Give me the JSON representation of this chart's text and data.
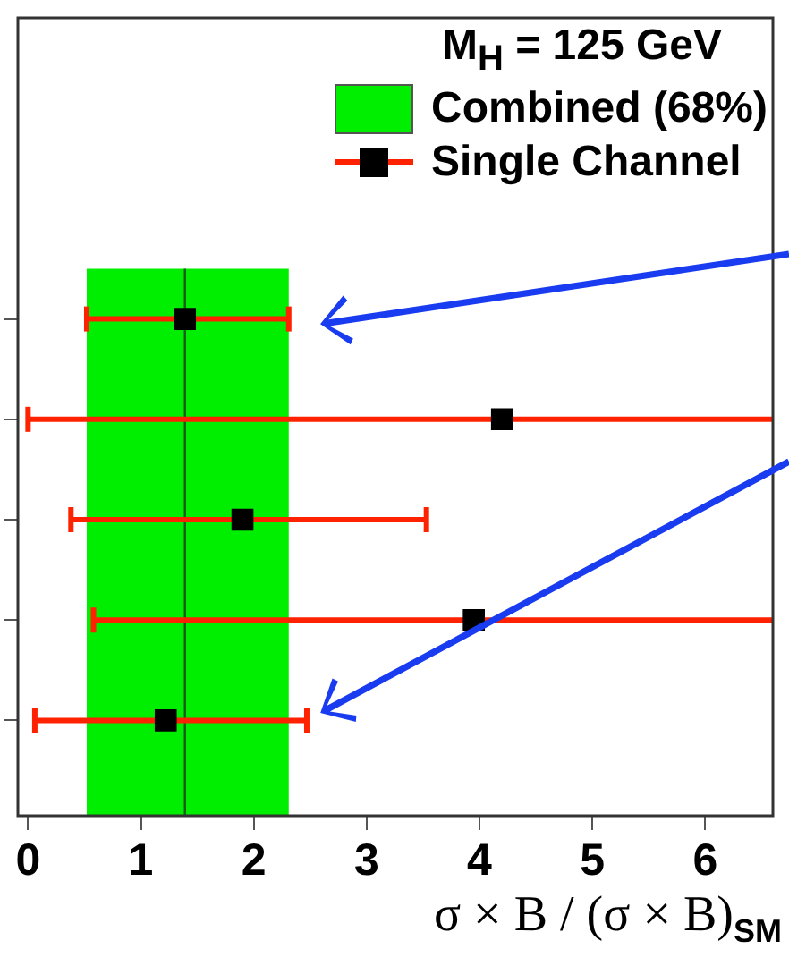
{
  "chart_data": {
    "type": "scatter",
    "orientation": "horizontal",
    "categories": [
      null,
      null,
      null,
      null,
      null
    ],
    "series": [
      {
        "name": "Single Channel",
        "color": "#000000",
        "values": [
          1.39,
          4.2,
          1.9,
          3.95,
          1.22
        ],
        "errors": [
          [
            0.52,
            2.31
          ],
          [
            0.0,
            6.6
          ],
          [
            0.38,
            3.53
          ],
          [
            0.58,
            6.6
          ],
          [
            0.06,
            2.47
          ]
        ]
      }
    ],
    "marker": "square",
    "legend": "top right",
    "legend_title": "M$_{H}$ = 125 GeV",
    "bands": [
      {
        "axis": "x",
        "from": 0.52,
        "to": 2.31,
        "label": "Combined (68%)",
        "color": "#00ee00"
      }
    ],
    "ref_lines": [
      {
        "axis": "x",
        "value": 1.39,
        "color": "#1a5a1a"
      }
    ],
    "xlim": [
      -0.09,
      6.6
    ],
    "xticks": [
      0,
      1,
      2,
      3,
      4,
      5,
      6
    ],
    "xlabel": "σ × B / (σ × B)$_{SM}$",
    "grid": false
  }
}
